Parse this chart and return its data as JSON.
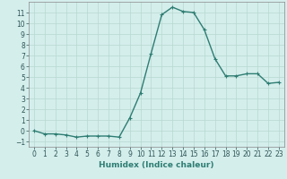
{
  "x": [
    0,
    1,
    2,
    3,
    4,
    5,
    6,
    7,
    8,
    9,
    10,
    11,
    12,
    13,
    14,
    15,
    16,
    17,
    18,
    19,
    20,
    21,
    22,
    23
  ],
  "y": [
    0.0,
    -0.3,
    -0.3,
    -0.4,
    -0.6,
    -0.5,
    -0.5,
    -0.5,
    -0.6,
    1.2,
    3.5,
    7.2,
    10.8,
    11.5,
    11.1,
    11.0,
    9.4,
    6.7,
    5.1,
    5.1,
    5.3,
    5.3,
    4.4,
    4.5
  ],
  "line_color": "#2e7d72",
  "marker": "+",
  "marker_size": 3,
  "linewidth": 1.0,
  "xlabel": "Humidex (Indice chaleur)",
  "ylabel": "",
  "xlim": [
    -0.5,
    23.5
  ],
  "ylim": [
    -1.5,
    12.0
  ],
  "yticks": [
    -1,
    0,
    1,
    2,
    3,
    4,
    5,
    6,
    7,
    8,
    9,
    10,
    11
  ],
  "xticks": [
    0,
    1,
    2,
    3,
    4,
    5,
    6,
    7,
    8,
    9,
    10,
    11,
    12,
    13,
    14,
    15,
    16,
    17,
    18,
    19,
    20,
    21,
    22,
    23
  ],
  "grid_color": "#b8d8d0",
  "bg_color": "#d4eeec",
  "tick_fontsize": 5.5,
  "label_fontsize": 6.5
}
